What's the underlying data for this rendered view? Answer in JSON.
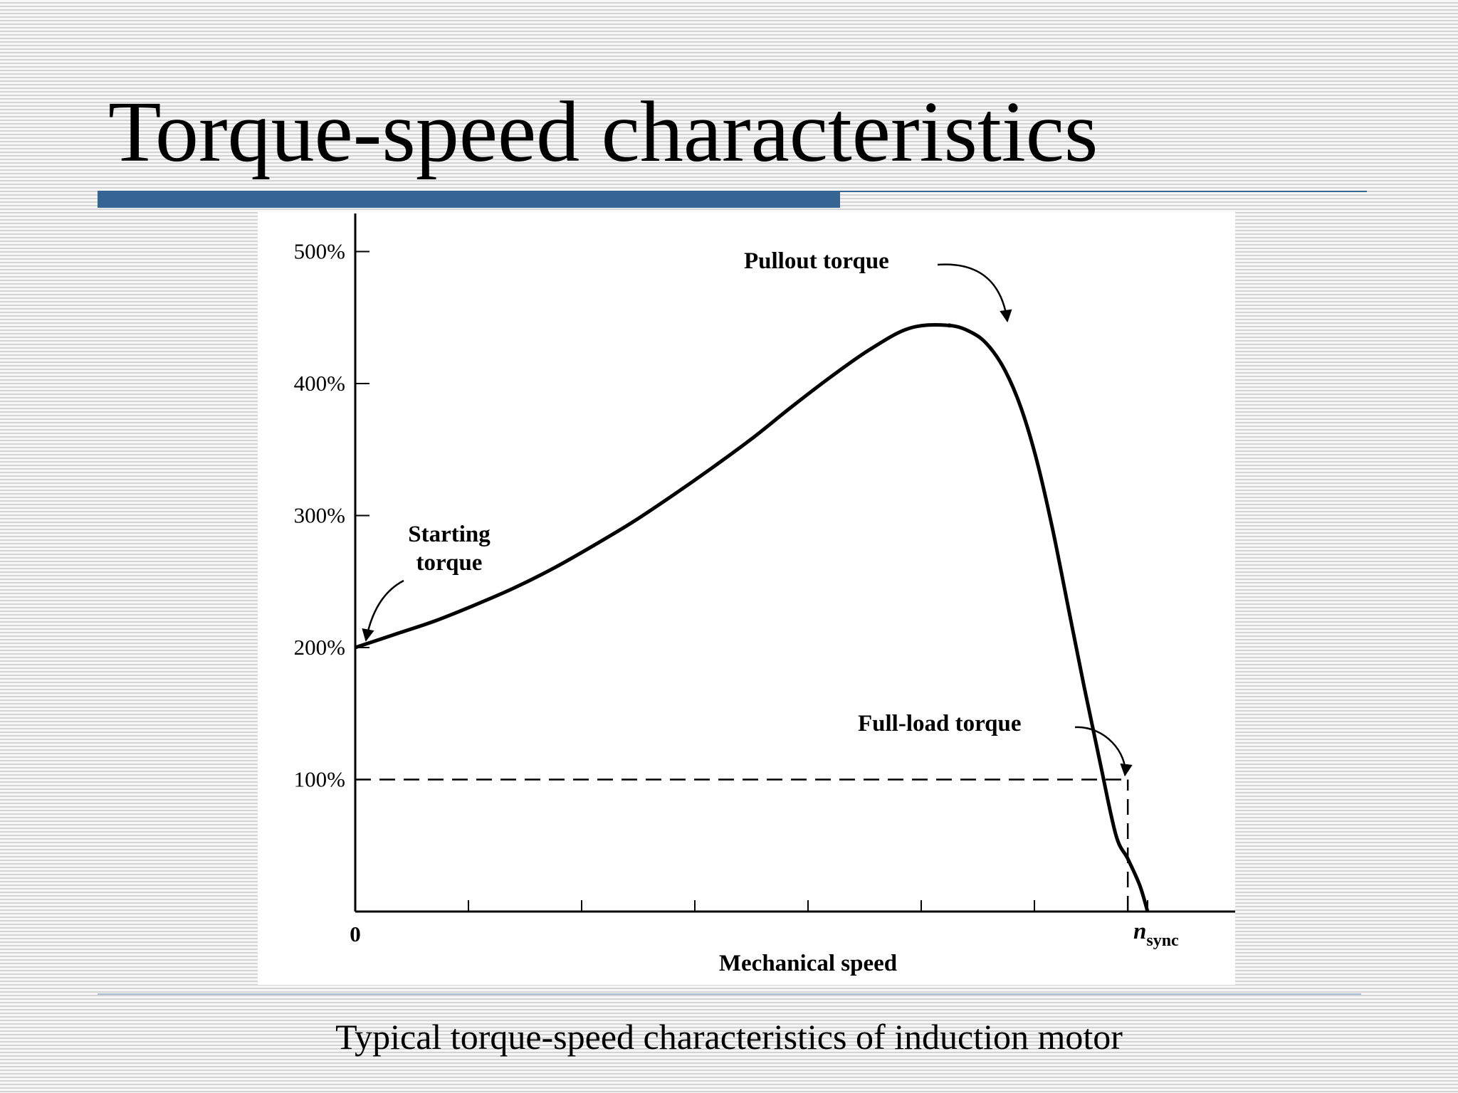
{
  "slide": {
    "title": "Torque-speed characteristics",
    "caption": "Typical torque-speed characteristics of induction motor"
  },
  "colors": {
    "title_bar": "#376593",
    "curve": "#000000",
    "figure_background": "#ffffff"
  },
  "chart_data": {
    "type": "line",
    "xlabel": "Mechanical speed",
    "x_ticks": {
      "start": "0",
      "end_base": "n",
      "end_sub": "sync"
    },
    "x_unit": "fraction of synchronous speed",
    "xlim": [
      0,
      1.08
    ],
    "ylim": [
      0,
      5.2
    ],
    "y_ticks": [
      {
        "label": "100%",
        "value": 1
      },
      {
        "label": "200%",
        "value": 2
      },
      {
        "label": "300%",
        "value": 3
      },
      {
        "label": "400%",
        "value": 4
      },
      {
        "label": "500%",
        "value": 5
      }
    ],
    "series": [
      {
        "x": [
          0,
          0.05,
          0.1,
          0.15,
          0.2,
          0.25,
          0.3,
          0.35,
          0.4,
          0.45,
          0.5,
          0.55,
          0.6,
          0.65,
          0.7,
          0.75,
          0.78,
          0.8,
          0.82,
          0.84,
          0.86,
          0.88,
          0.9,
          0.92,
          0.94,
          0.96,
          0.975,
          0.99,
          1.0
        ],
        "y": [
          2.0,
          2.1,
          2.2,
          2.32,
          2.45,
          2.6,
          2.77,
          2.95,
          3.15,
          3.36,
          3.58,
          3.82,
          4.05,
          4.26,
          4.42,
          4.44,
          4.38,
          4.28,
          4.1,
          3.82,
          3.42,
          2.9,
          2.3,
          1.7,
          1.13,
          0.58,
          0.4,
          0.2,
          0.0
        ]
      }
    ],
    "reference_lines": [
      {
        "style": "dashed",
        "y": 1.0,
        "x_from": 0,
        "x_to": 0.975
      },
      {
        "style": "dashed",
        "x": 0.975,
        "y_from": 0,
        "y_to": 1.0
      }
    ],
    "annotations": [
      {
        "id": "pullout",
        "text": "Pullout torque",
        "x": 0.75,
        "y": 4.44
      },
      {
        "id": "starting",
        "lines": [
          "Starting",
          "torque"
        ],
        "x": 0,
        "y": 2.0
      },
      {
        "id": "fullload",
        "text": "Full-load torque",
        "x": 0.975,
        "y": 1.0
      }
    ],
    "grid": false,
    "legend": "none"
  }
}
